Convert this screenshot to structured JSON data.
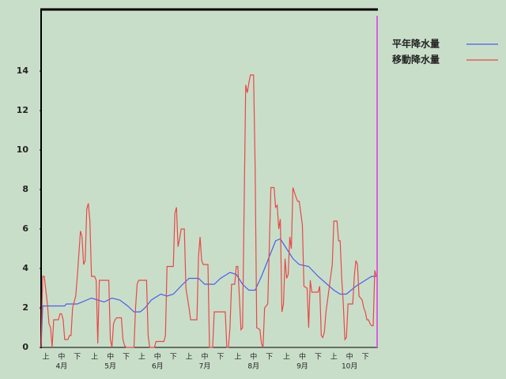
{
  "chart_data": {
    "type": "line",
    "xlim": [
      0,
      214
    ],
    "ylim": [
      0,
      17.12
    ],
    "yticks": [
      0,
      2,
      4,
      6,
      8,
      10,
      12,
      14
    ],
    "xticks": [
      {
        "value": 3,
        "label": "上"
      },
      {
        "value": 13,
        "label": "中"
      },
      {
        "value": 23,
        "label": "下"
      },
      {
        "value": 34,
        "label": "上"
      },
      {
        "value": 44,
        "label": "中"
      },
      {
        "value": 54,
        "label": "下"
      },
      {
        "value": 64,
        "label": "上"
      },
      {
        "value": 74,
        "label": "中"
      },
      {
        "value": 84,
        "label": "下"
      },
      {
        "value": 94,
        "label": "上"
      },
      {
        "value": 104,
        "label": "中"
      },
      {
        "value": 114,
        "label": "下"
      },
      {
        "value": 125,
        "label": "上"
      },
      {
        "value": 135,
        "label": "中"
      },
      {
        "value": 145,
        "label": "下"
      },
      {
        "value": 156,
        "label": "上"
      },
      {
        "value": 166,
        "label": "中"
      },
      {
        "value": 176,
        "label": "下"
      },
      {
        "value": 186,
        "label": "上"
      },
      {
        "value": 196,
        "label": "中"
      },
      {
        "value": 206,
        "label": "下"
      }
    ],
    "month_ticks": [
      {
        "value": 13,
        "label": "4月"
      },
      {
        "value": 44,
        "label": "5月"
      },
      {
        "value": 74,
        "label": "6月"
      },
      {
        "value": 104,
        "label": "7月"
      },
      {
        "value": 135,
        "label": "8月"
      },
      {
        "value": 166,
        "label": "9月"
      },
      {
        "value": 196,
        "label": "10月"
      }
    ],
    "series": [
      {
        "name": "平年降水量",
        "color": "#4a5ee6",
        "x": [
          0,
          1,
          15,
          16,
          23,
          29,
          32,
          36,
          40,
          45,
          50,
          55,
          59,
          63,
          66,
          70,
          76,
          80,
          84,
          90,
          94,
          100,
          104,
          110,
          114,
          120,
          124,
          128,
          132,
          136,
          140,
          146,
          149,
          152,
          156,
          160,
          164,
          170,
          176,
          186,
          190,
          194,
          200,
          206,
          210,
          213
        ],
        "values": [
          0,
          2.1,
          2.1,
          2.2,
          2.2,
          2.4,
          2.5,
          2.4,
          2.3,
          2.5,
          2.4,
          2.1,
          1.8,
          1.8,
          2.0,
          2.4,
          2.7,
          2.6,
          2.7,
          3.2,
          3.5,
          3.5,
          3.2,
          3.2,
          3.5,
          3.8,
          3.7,
          3.2,
          2.9,
          2.9,
          3.6,
          4.8,
          5.4,
          5.5,
          5.0,
          4.5,
          4.2,
          4.1,
          3.6,
          2.9,
          2.7,
          2.7,
          3.1,
          3.4,
          3.6,
          3.6
        ]
      },
      {
        "name": "移動降水量",
        "color": "#e84848",
        "x": [
          0,
          1,
          2,
          4,
          5,
          6,
          7,
          8,
          11,
          12,
          13,
          14,
          15,
          17,
          18,
          19,
          20,
          22,
          23,
          25,
          26,
          27,
          28,
          29,
          30,
          31,
          32,
          34,
          35,
          36,
          37,
          43,
          44,
          45,
          46,
          47,
          48,
          51,
          52,
          53,
          54,
          59,
          60,
          61,
          62,
          67,
          68,
          69,
          72,
          73,
          78,
          79,
          80,
          84,
          85,
          86,
          87,
          88,
          89,
          91,
          92,
          94,
          95,
          99,
          100,
          101,
          102,
          103,
          106,
          107,
          109,
          110,
          117,
          118,
          119,
          120,
          121,
          123,
          124,
          125,
          127,
          128,
          130,
          131,
          132,
          133,
          135,
          136,
          137,
          139,
          140,
          141,
          142,
          144,
          146,
          148,
          149,
          150,
          151,
          152,
          153,
          154,
          155,
          156,
          157,
          158,
          159,
          160,
          162,
          163,
          164,
          166,
          167,
          169,
          170,
          171,
          172,
          176,
          177,
          178,
          179,
          180,
          181,
          183,
          185,
          186,
          188,
          189,
          190,
          191,
          192,
          193,
          194,
          195,
          198,
          199,
          200,
          201,
          202,
          204,
          205,
          206,
          207,
          208,
          209,
          210,
          211,
          212,
          213
        ],
        "values": [
          0,
          3.6,
          3.6,
          2.2,
          1.2,
          1.0,
          0,
          1.4,
          1.4,
          1.7,
          1.7,
          1.4,
          0.4,
          0.4,
          0.6,
          0.6,
          2.0,
          2.6,
          3.6,
          5.9,
          5.6,
          4.2,
          4.4,
          7.0,
          7.3,
          6.4,
          3.6,
          3.6,
          3.4,
          0.2,
          3.4,
          3.4,
          0.4,
          0,
          1.2,
          1.4,
          1.5,
          1.5,
          0.4,
          0.1,
          0,
          0,
          2.0,
          3.2,
          3.4,
          3.4,
          0.6,
          0,
          0,
          0.3,
          0.3,
          0.6,
          4.1,
          4.1,
          6.8,
          7.1,
          5.1,
          5.5,
          6.0,
          6.0,
          3.0,
          2.0,
          1.4,
          1.4,
          4.6,
          5.6,
          4.4,
          4.2,
          4.2,
          0,
          0,
          1.8,
          1.8,
          0,
          0,
          1.0,
          3.2,
          3.2,
          4.1,
          4.1,
          0.9,
          1.0,
          13.3,
          12.9,
          13.4,
          13.8,
          13.8,
          9.0,
          1.0,
          0.9,
          0.2,
          0,
          2.0,
          2.2,
          8.1,
          8.1,
          7.1,
          7.2,
          6.0,
          6.5,
          1.8,
          2.2,
          4.5,
          3.5,
          3.7,
          5.6,
          5.0,
          8.1,
          7.6,
          7.4,
          7.4,
          6.2,
          3.1,
          3.0,
          1.0,
          3.4,
          2.8,
          2.8,
          3.1,
          0.6,
          0.5,
          0.8,
          1.8,
          3.0,
          4.2,
          6.4,
          6.4,
          5.4,
          5.4,
          3.5,
          2.2,
          0.4,
          0.5,
          2.2,
          2.2,
          3.6,
          4.4,
          4.2,
          2.6,
          2.4,
          2.0,
          1.8,
          1.4,
          1.4,
          1.2,
          1.1,
          1.1,
          3.9,
          3.6
        ]
      }
    ]
  }
}
